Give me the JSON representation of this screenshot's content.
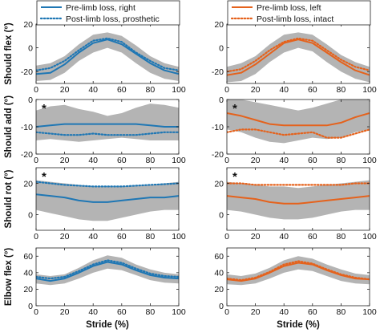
{
  "figure": {
    "xlabel": "Stride (%)",
    "xticks": [
      0,
      20,
      40,
      60,
      80,
      100
    ],
    "rows": [
      {
        "ylabel": "Should flex (°)",
        "yticks": [
          -20,
          0,
          20
        ],
        "ylim": [
          -30,
          20
        ]
      },
      {
        "ylabel": "Should add (°)",
        "yticks": [
          -20,
          -10,
          0
        ],
        "ylim": [
          -20,
          0
        ]
      },
      {
        "ylabel": "Should rot (°)",
        "yticks": [
          0,
          20
        ],
        "ylim": [
          -10,
          30
        ]
      },
      {
        "ylabel": "Elbow flex (°)",
        "yticks": [
          0,
          20,
          40,
          60
        ],
        "ylim": [
          0,
          70
        ]
      }
    ],
    "significance_marker": "*",
    "legend_left": [
      "Pre-limb loss, right",
      "Post-limb loss, prosthetic"
    ],
    "legend_right": [
      "Pre-limb loss, left",
      "Post-limb loss, intact"
    ]
  },
  "colors": {
    "left_series": "#1f77b4",
    "right_series": "#e5621c",
    "band": "#b4b4b4"
  },
  "chart_data": [
    {
      "type": "line",
      "panel": "left",
      "ylabel": "Should flex (°)",
      "xlabel": "",
      "xlim": [
        0,
        100
      ],
      "ylim": [
        -30,
        20
      ],
      "significant": false,
      "x": [
        0,
        10,
        20,
        30,
        40,
        50,
        60,
        70,
        80,
        90,
        100
      ],
      "series": [
        {
          "name": "Pre-limb loss, right",
          "style": "solid",
          "values": [
            -22,
            -21,
            -14,
            -4,
            4,
            7,
            3,
            -5,
            -13,
            -19,
            -22
          ]
        },
        {
          "name": "Post-limb loss, prosthetic",
          "style": "dotted",
          "values": [
            -19,
            -17,
            -11,
            -2,
            6,
            8,
            5,
            -4,
            -11,
            -17,
            -19
          ]
        }
      ],
      "band": {
        "upper": [
          -15,
          -13,
          -7,
          3,
          11,
          13,
          10,
          2,
          -7,
          -13,
          -16
        ],
        "lower": [
          -28,
          -27,
          -21,
          -11,
          -4,
          0,
          -4,
          -13,
          -21,
          -26,
          -28
        ]
      }
    },
    {
      "type": "line",
      "panel": "right",
      "ylabel": "",
      "xlabel": "",
      "xlim": [
        0,
        100
      ],
      "ylim": [
        -30,
        20
      ],
      "significant": false,
      "x": [
        0,
        10,
        20,
        30,
        40,
        50,
        60,
        70,
        80,
        90,
        100
      ],
      "series": [
        {
          "name": "Pre-limb loss, left",
          "style": "solid",
          "values": [
            -23,
            -21,
            -14,
            -5,
            4,
            7,
            4,
            -4,
            -12,
            -19,
            -23
          ]
        },
        {
          "name": "Post-limb loss, intact",
          "style": "dotted",
          "values": [
            -20,
            -18,
            -11,
            -2,
            5,
            8,
            6,
            -2,
            -10,
            -16,
            -19
          ]
        }
      ],
      "band": {
        "upper": [
          -16,
          -13,
          -7,
          3,
          11,
          13,
          11,
          3,
          -6,
          -12,
          -16
        ],
        "lower": [
          -29,
          -28,
          -22,
          -12,
          -4,
          0,
          -3,
          -12,
          -20,
          -26,
          -29
        ]
      }
    },
    {
      "type": "line",
      "panel": "left",
      "ylabel": "Should add (°)",
      "xlabel": "",
      "xlim": [
        0,
        100
      ],
      "ylim": [
        -20,
        0
      ],
      "significant": true,
      "x": [
        0,
        10,
        20,
        30,
        40,
        50,
        60,
        70,
        80,
        90,
        100
      ],
      "series": [
        {
          "name": "Pre-limb loss, right",
          "style": "solid",
          "values": [
            -10,
            -9.5,
            -9,
            -9,
            -9,
            -9,
            -9,
            -9,
            -9.5,
            -10,
            -10
          ]
        },
        {
          "name": "Post-limb loss, prosthetic",
          "style": "dotted",
          "values": [
            -12,
            -12.5,
            -13,
            -13,
            -12.5,
            -13,
            -13,
            -13,
            -12.5,
            -12,
            -12
          ]
        }
      ],
      "band": {
        "upper": [
          -4,
          -2.5,
          -2,
          -3.5,
          -4.5,
          -6,
          -5,
          -3,
          -1.5,
          -2,
          -3
        ],
        "lower": [
          -15,
          -14.5,
          -15,
          -15.5,
          -15,
          -14.5,
          -14,
          -14.5,
          -15,
          -15,
          -15
        ]
      }
    },
    {
      "type": "line",
      "panel": "right",
      "ylabel": "",
      "xlabel": "",
      "xlim": [
        0,
        100
      ],
      "ylim": [
        -20,
        0
      ],
      "significant": true,
      "x": [
        0,
        10,
        20,
        30,
        40,
        50,
        60,
        70,
        80,
        90,
        100
      ],
      "series": [
        {
          "name": "Pre-limb loss, left",
          "style": "solid",
          "values": [
            -5,
            -6,
            -7.5,
            -9,
            -9.5,
            -9.5,
            -9.5,
            -9.5,
            -8.5,
            -6.5,
            -5
          ]
        },
        {
          "name": "Post-limb loss, intact",
          "style": "dotted",
          "values": [
            -12,
            -11,
            -11,
            -12,
            -13,
            -12.5,
            -12,
            -14,
            -14,
            -12.5,
            -11
          ]
        }
      ],
      "band": {
        "upper": [
          1,
          0,
          -1,
          -2,
          -3,
          -4,
          -3,
          -1.5,
          0,
          1,
          1
        ],
        "lower": [
          -11,
          -12,
          -14,
          -15.5,
          -16,
          -15,
          -14,
          -14.5,
          -14,
          -12,
          -11
        ]
      }
    },
    {
      "type": "line",
      "panel": "left",
      "ylabel": "Should rot (°)",
      "xlabel": "",
      "xlim": [
        0,
        100
      ],
      "ylim": [
        -10,
        30
      ],
      "significant": true,
      "x": [
        0,
        10,
        20,
        30,
        40,
        50,
        60,
        70,
        80,
        90,
        100
      ],
      "series": [
        {
          "name": "Pre-limb loss, right",
          "style": "solid",
          "values": [
            13,
            12,
            11,
            9,
            8,
            8,
            9,
            10,
            11,
            11,
            12
          ]
        },
        {
          "name": "Post-limb loss, prosthetic",
          "style": "dotted",
          "values": [
            21,
            20,
            19,
            18.5,
            18,
            18,
            18,
            18.5,
            19,
            19.5,
            20
          ]
        }
      ],
      "band": {
        "upper": [
          22,
          21,
          20,
          19,
          18,
          18,
          18,
          18.5,
          19,
          20,
          21
        ],
        "lower": [
          3,
          1,
          -1,
          -3,
          -4,
          -4,
          -2,
          0,
          2,
          3,
          3
        ]
      }
    },
    {
      "type": "line",
      "panel": "right",
      "ylabel": "",
      "xlabel": "",
      "xlim": [
        0,
        100
      ],
      "ylim": [
        -10,
        30
      ],
      "significant": true,
      "x": [
        0,
        10,
        20,
        30,
        40,
        50,
        60,
        70,
        80,
        90,
        100
      ],
      "series": [
        {
          "name": "Pre-limb loss, left",
          "style": "solid",
          "values": [
            12,
            11,
            10,
            8,
            7,
            7,
            8,
            9,
            10,
            11,
            12
          ]
        },
        {
          "name": "Post-limb loss, intact",
          "style": "dotted",
          "values": [
            20,
            20,
            19,
            19,
            19,
            19,
            19,
            19,
            19,
            20,
            20
          ]
        }
      ],
      "band": {
        "upper": [
          21,
          20,
          19,
          18,
          18,
          17,
          18,
          19,
          20,
          21,
          22
        ],
        "lower": [
          3,
          2,
          0,
          -2,
          -3,
          -3,
          -2,
          0,
          2,
          3,
          3
        ]
      }
    },
    {
      "type": "line",
      "panel": "left",
      "ylabel": "Elbow flex (°)",
      "xlabel": "Stride (%)",
      "xlim": [
        0,
        100
      ],
      "ylim": [
        0,
        70
      ],
      "significant": false,
      "x": [
        0,
        10,
        20,
        30,
        40,
        50,
        60,
        70,
        80,
        90,
        100
      ],
      "series": [
        {
          "name": "Pre-limb loss, right",
          "style": "solid",
          "values": [
            33,
            30,
            33,
            40,
            48,
            53,
            50,
            43,
            37,
            34,
            33
          ]
        },
        {
          "name": "Post-limb loss, prosthetic",
          "style": "dotted",
          "values": [
            35,
            33,
            35,
            42,
            50,
            55,
            52,
            45,
            39,
            36,
            35
          ]
        }
      ],
      "band": {
        "upper": [
          38,
          36,
          38,
          46,
          55,
          61,
          58,
          50,
          44,
          40,
          38
        ],
        "lower": [
          27,
          25,
          27,
          33,
          40,
          45,
          43,
          37,
          31,
          28,
          27
        ]
      }
    },
    {
      "type": "line",
      "panel": "right",
      "ylabel": "",
      "xlabel": "Stride (%)",
      "xlim": [
        0,
        100
      ],
      "ylim": [
        0,
        70
      ],
      "significant": false,
      "x": [
        0,
        10,
        20,
        30,
        40,
        50,
        60,
        70,
        80,
        90,
        100
      ],
      "series": [
        {
          "name": "Pre-limb loss, left",
          "style": "solid",
          "values": [
            32,
            30,
            33,
            40,
            48,
            52,
            50,
            43,
            37,
            33,
            32
          ]
        },
        {
          "name": "Post-limb loss, intact",
          "style": "dotted",
          "values": [
            33,
            31,
            34,
            41,
            50,
            54,
            51,
            44,
            38,
            34,
            32
          ]
        }
      ],
      "band": {
        "upper": [
          38,
          36,
          39,
          46,
          55,
          60,
          57,
          50,
          44,
          39,
          37
        ],
        "lower": [
          26,
          25,
          27,
          33,
          40,
          44,
          42,
          36,
          30,
          27,
          26
        ]
      }
    }
  ]
}
